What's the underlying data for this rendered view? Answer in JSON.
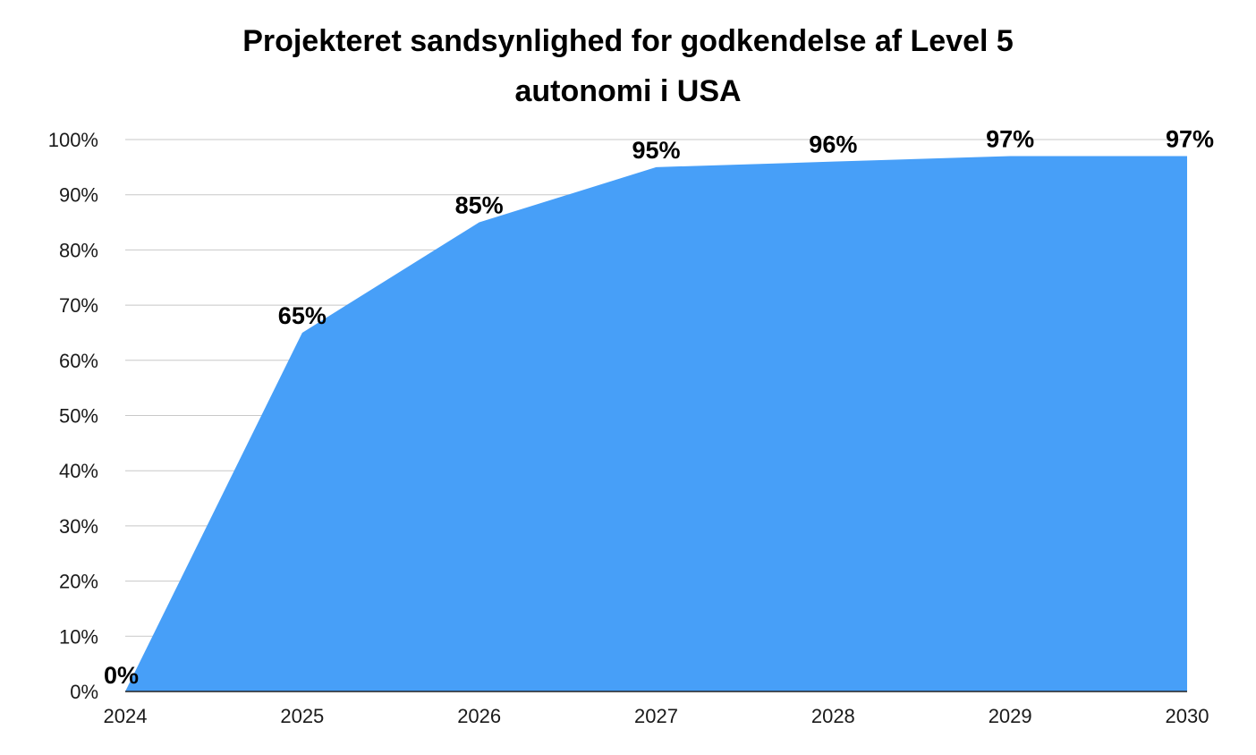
{
  "chart_data": {
    "type": "area",
    "title_lines": [
      "Projekteret sandsynlighed for godkendelse af Level 5",
      "autonomi i USA"
    ],
    "x": [
      "2024",
      "2025",
      "2026",
      "2027",
      "2028",
      "2029",
      "2030"
    ],
    "values": [
      0,
      65,
      85,
      95,
      96,
      97,
      97
    ],
    "data_labels": [
      "0%",
      "65%",
      "85%",
      "95%",
      "96%",
      "97%",
      "97%"
    ],
    "y_ticks": [
      "0%",
      "10%",
      "20%",
      "30%",
      "40%",
      "50%",
      "60%",
      "70%",
      "80%",
      "90%",
      "100%"
    ],
    "ylim": [
      0,
      100
    ],
    "grid": true,
    "legend": "none",
    "colors": {
      "area": "#479ff8",
      "grid": "#c8c8c8",
      "axis": "#222222"
    }
  }
}
